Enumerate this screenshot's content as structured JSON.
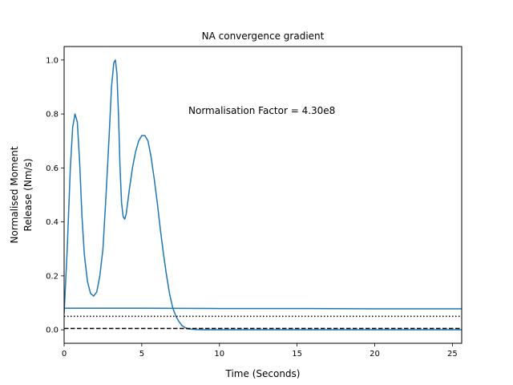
{
  "chart_data": {
    "type": "line",
    "title": "NA convergence gradient",
    "xlabel": "Time (Seconds)",
    "ylabel": [
      "Normalised Moment",
      "Release (Nm/s)"
    ],
    "xlim": [
      0,
      25.6
    ],
    "ylim": [
      -0.05,
      1.05
    ],
    "xticks": [
      0,
      5,
      10,
      15,
      20,
      25
    ],
    "yticks": [
      0.0,
      0.2,
      0.4,
      0.6,
      0.8,
      1.0
    ],
    "xtick_labels": [
      "0",
      "5",
      "10",
      "15",
      "20",
      "25"
    ],
    "ytick_labels": [
      "0.0",
      "0.2",
      "0.4",
      "0.6",
      "0.8",
      "1.0"
    ],
    "grid": false,
    "annotation": "Normalisation Factor = 4.30e8",
    "series": [
      {
        "color": "#1f77b4",
        "style": "solid",
        "x": [
          0,
          0.2,
          0.4,
          0.55,
          0.7,
          0.85,
          1.0,
          1.15,
          1.3,
          1.5,
          1.7,
          1.9,
          2.1,
          2.3,
          2.5,
          2.7,
          2.9,
          3.05,
          3.2,
          3.3,
          3.4,
          3.5,
          3.6,
          3.7,
          3.8,
          3.9,
          4.0,
          4.2,
          4.4,
          4.6,
          4.8,
          5.0,
          5.2,
          5.4,
          5.6,
          5.8,
          6.0,
          6.2,
          6.4,
          6.6,
          6.8,
          7.0,
          7.2,
          7.4,
          7.6,
          7.8,
          8.0,
          8.5,
          9.0,
          10.0,
          15.0,
          20.0,
          25.6
        ],
        "y": [
          0.06,
          0.3,
          0.6,
          0.75,
          0.8,
          0.77,
          0.62,
          0.42,
          0.28,
          0.18,
          0.135,
          0.125,
          0.14,
          0.2,
          0.3,
          0.5,
          0.72,
          0.9,
          0.99,
          1.0,
          0.95,
          0.8,
          0.6,
          0.47,
          0.42,
          0.41,
          0.43,
          0.52,
          0.6,
          0.66,
          0.7,
          0.72,
          0.72,
          0.7,
          0.64,
          0.56,
          0.47,
          0.37,
          0.28,
          0.2,
          0.13,
          0.08,
          0.05,
          0.03,
          0.015,
          0.008,
          0.003,
          0.001,
          0.0,
          0.0,
          0.0,
          0.0,
          0.0
        ]
      },
      {
        "color": "#1f77b4",
        "style": "solid",
        "x": [
          0,
          5,
          10,
          15,
          20,
          25.6
        ],
        "y": [
          0.08,
          0.08,
          0.079,
          0.079,
          0.078,
          0.078
        ]
      },
      {
        "color": "#000000",
        "style": "dotted",
        "x": [
          0,
          25.6
        ],
        "y": [
          0.05,
          0.05
        ]
      },
      {
        "color": "#000000",
        "style": "dashed",
        "x": [
          0,
          25.6
        ],
        "y": [
          0.005,
          0.005
        ]
      }
    ]
  }
}
